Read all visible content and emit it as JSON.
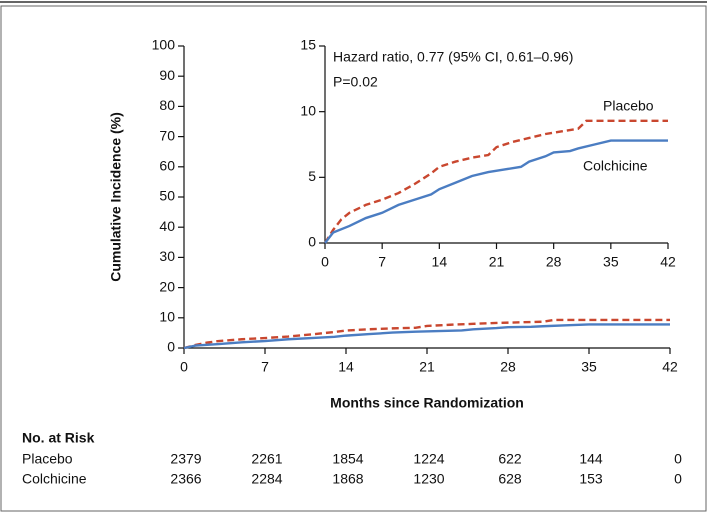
{
  "chart_data": [
    {
      "type": "line",
      "x_label": "Months since Randomization",
      "y_label": "Cumulative Incidence (%)",
      "xlim": [
        0,
        42
      ],
      "xticks": [
        0,
        7,
        14,
        21,
        28,
        35,
        42
      ],
      "ylim": [
        0,
        100
      ],
      "yticks": [
        0,
        10,
        20,
        30,
        40,
        50,
        60,
        70,
        80,
        90,
        100
      ],
      "series": [
        {
          "name": "Placebo",
          "color": "#c9472f",
          "dashed": true,
          "x": [
            0,
            1,
            2,
            3,
            5,
            7,
            9,
            11,
            13,
            14,
            16,
            18,
            20,
            21,
            23,
            25,
            27,
            29,
            31,
            32,
            42
          ],
          "values": [
            0,
            1.0,
            1.8,
            2.3,
            2.9,
            3.3,
            3.8,
            4.5,
            5.3,
            5.8,
            6.2,
            6.5,
            6.7,
            7.3,
            7.7,
            8.0,
            8.3,
            8.5,
            8.7,
            9.3,
            9.3
          ]
        },
        {
          "name": "Colchicine",
          "color": "#4b7dc2",
          "dashed": false,
          "x": [
            0,
            1,
            3,
            5,
            7,
            9,
            11,
            13,
            14,
            16,
            18,
            20,
            22,
            24,
            25,
            27,
            28,
            30,
            31,
            33,
            35,
            42
          ],
          "values": [
            0,
            0.8,
            1.3,
            1.9,
            2.3,
            2.9,
            3.3,
            3.7,
            4.1,
            4.6,
            5.1,
            5.4,
            5.6,
            5.8,
            6.2,
            6.6,
            6.9,
            7.0,
            7.2,
            7.5,
            7.8,
            7.8
          ]
        }
      ],
      "risk_table": {
        "title": "No. at Risk",
        "rows": [
          {
            "name": "Placebo",
            "values": [
              2379,
              2261,
              1854,
              1224,
              622,
              144,
              0
            ]
          },
          {
            "name": "Colchicine",
            "values": [
              2366,
              2284,
              1868,
              1230,
              628,
              153,
              0
            ]
          }
        ]
      }
    },
    {
      "type": "line",
      "annotations": [
        "Hazard ratio, 0.77 (95% CI, 0.61–0.96)",
        "P=0.02"
      ],
      "xlim": [
        0,
        42
      ],
      "xticks": [
        0,
        7,
        14,
        21,
        28,
        35,
        42
      ],
      "ylim": [
        0,
        15
      ],
      "yticks": [
        0,
        5,
        10,
        15
      ],
      "series": [
        {
          "name": "Placebo",
          "color": "#c9472f",
          "dashed": true,
          "x": [
            0,
            1,
            2,
            3,
            5,
            7,
            9,
            11,
            13,
            14,
            16,
            18,
            20,
            21,
            23,
            25,
            27,
            29,
            31,
            32,
            42
          ],
          "values": [
            0,
            1.0,
            1.8,
            2.3,
            2.9,
            3.3,
            3.8,
            4.5,
            5.3,
            5.8,
            6.2,
            6.5,
            6.7,
            7.3,
            7.7,
            8.0,
            8.3,
            8.5,
            8.7,
            9.3,
            9.3
          ]
        },
        {
          "name": "Colchicine",
          "color": "#4b7dc2",
          "dashed": false,
          "x": [
            0,
            1,
            3,
            5,
            7,
            9,
            11,
            13,
            14,
            16,
            18,
            20,
            22,
            24,
            25,
            27,
            28,
            30,
            31,
            33,
            35,
            42
          ],
          "values": [
            0,
            0.8,
            1.3,
            1.9,
            2.3,
            2.9,
            3.3,
            3.7,
            4.1,
            4.6,
            5.1,
            5.4,
            5.6,
            5.8,
            6.2,
            6.6,
            6.9,
            7.0,
            7.2,
            7.5,
            7.8,
            7.8
          ]
        }
      ]
    }
  ]
}
